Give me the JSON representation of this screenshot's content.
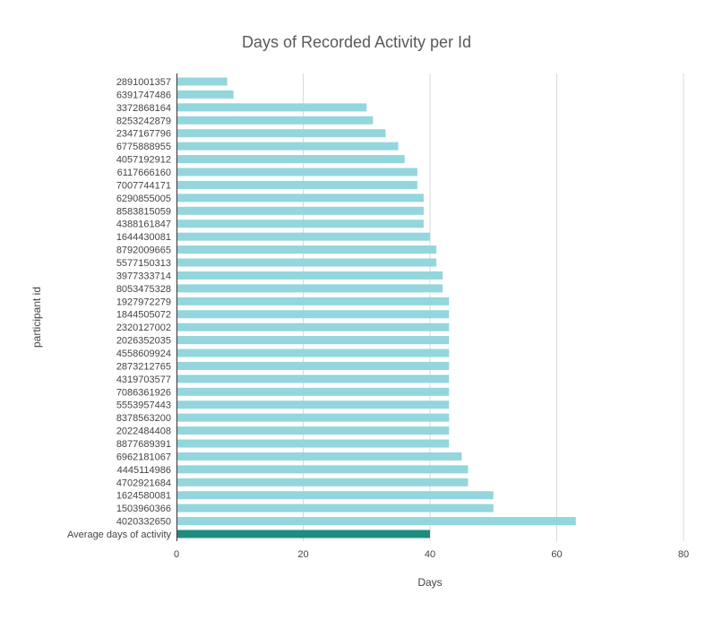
{
  "chart_data": {
    "type": "bar",
    "orientation": "horizontal",
    "title": "Days of Recorded Activity per Id",
    "xlabel": "Days",
    "ylabel": "participant id",
    "xlim": [
      0,
      80
    ],
    "xticks": [
      0,
      20,
      40,
      60,
      80
    ],
    "grid": true,
    "categories": [
      "2891001357",
      "6391747486",
      "3372868164",
      "8253242879",
      "2347167796",
      "6775888955",
      "4057192912",
      "6117666160",
      "7007744171",
      "6290855005",
      "8583815059",
      "4388161847",
      "1644430081",
      "8792009665",
      "5577150313",
      "3977333714",
      "8053475328",
      "1927972279",
      "1844505072",
      "2320127002",
      "2026352035",
      "4558609924",
      "2873212765",
      "4319703577",
      "7086361926",
      "5553957443",
      "8378563200",
      "2022484408",
      "8877689391",
      "6962181067",
      "4445114986",
      "4702921684",
      "1624580081",
      "1503960366",
      "4020332650",
      "Average days of activity"
    ],
    "values": [
      8,
      9,
      30,
      31,
      33,
      35,
      36,
      38,
      38,
      39,
      39,
      39,
      40,
      41,
      41,
      42,
      42,
      43,
      43,
      43,
      43,
      43,
      43,
      43,
      43,
      43,
      43,
      43,
      43,
      45,
      46,
      46,
      50,
      50,
      63,
      40
    ],
    "bar_color": "#93d6dd",
    "highlight_color": "#1f8c80",
    "highlight_category": "Average days of activity"
  }
}
